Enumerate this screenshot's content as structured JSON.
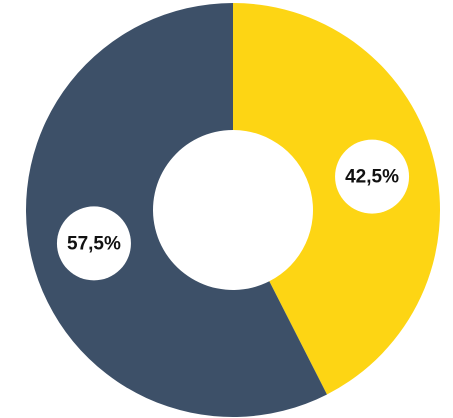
{
  "chart_data": {
    "type": "donut",
    "categories": [
      null,
      null
    ],
    "values": [
      42.5,
      57.5
    ],
    "value_labels": [
      "42,5%",
      "57,5%"
    ],
    "colors": [
      "#fdd514",
      "#3d5068"
    ]
  }
}
